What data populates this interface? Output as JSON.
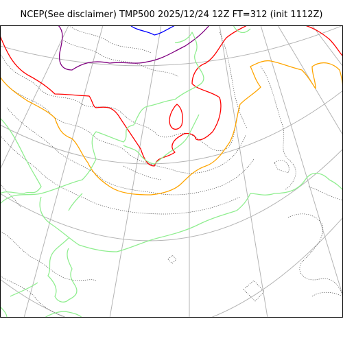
{
  "header": {
    "title": "NCEP(See disclaimer) TMP500 2025/12/24 12Z FT=312 (init 1112Z)"
  },
  "map": {
    "variable": "TMP500",
    "projection": "polar-stereographic",
    "isotherm_colors": {
      "blue": "#0000ff",
      "purple": "#800080",
      "red": "#ff0000",
      "orange": "#ffa500",
      "green": "#90ee90"
    },
    "graticule_color": "#b4b4b4",
    "coastline_style": "dotted gray"
  }
}
